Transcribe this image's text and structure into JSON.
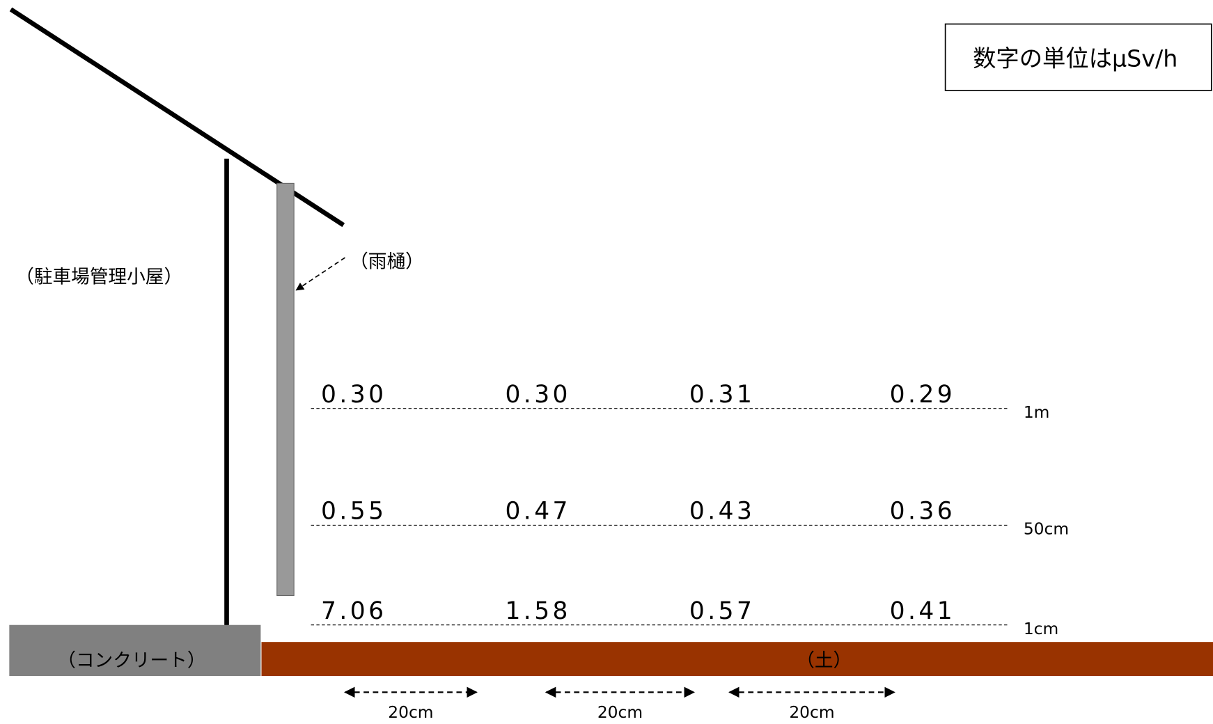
{
  "unit_note": "数字の単位はμSv/h",
  "labels": {
    "building": "（駐車場管理小屋）",
    "gutter": "（雨樋）",
    "concrete": "（コンクリート）",
    "soil": "（土）"
  },
  "rows": [
    {
      "height": "1m",
      "values": [
        "0.30",
        "0.30",
        "0.31",
        "0.29"
      ]
    },
    {
      "height": "50cm",
      "values": [
        "0.55",
        "0.47",
        "0.43",
        "0.36"
      ]
    },
    {
      "height": "1cm",
      "values": [
        "7.06",
        "1.58",
        "0.57",
        "0.41"
      ]
    }
  ],
  "spacings": [
    "20cm",
    "20cm",
    "20cm"
  ]
}
